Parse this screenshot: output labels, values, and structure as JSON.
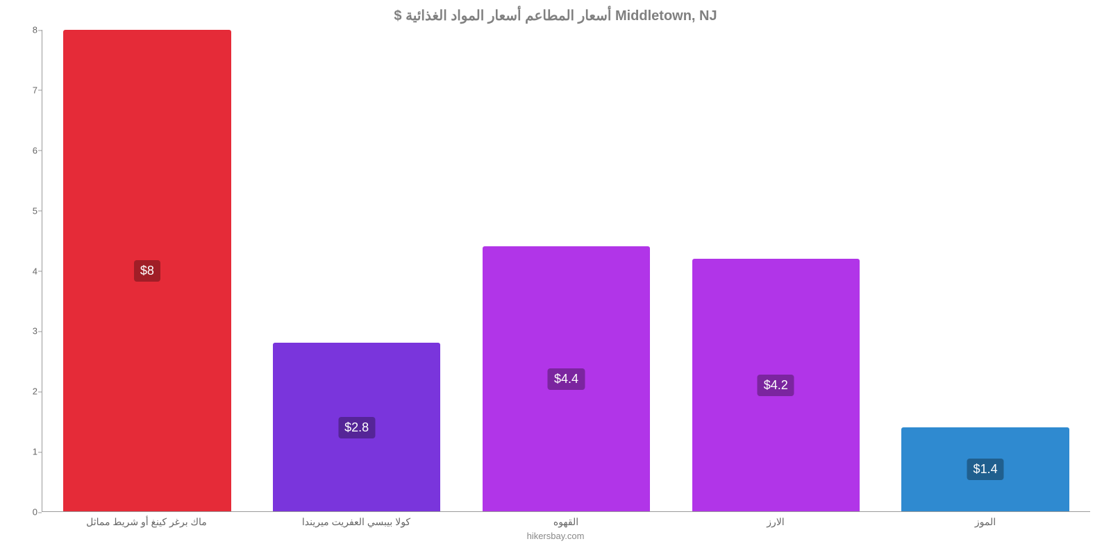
{
  "chart": {
    "type": "bar",
    "title": "$ أسعار المطاعم أسعار المواد الغذائية Middletown, NJ",
    "title_fontsize": 20,
    "title_color": "#808080",
    "source": "hikersbay.com",
    "background_color": "#ffffff",
    "axis_color": "#999999",
    "label_color": "#666666",
    "ylim": [
      0,
      8
    ],
    "ytick_step": 1,
    "yticks": [
      0,
      1,
      2,
      3,
      4,
      5,
      6,
      7,
      8
    ],
    "bar_width_pct": 80,
    "bar_label_fontsize": 18,
    "bar_label_text_color": "#ffffff",
    "categories": [
      "ماك برغر كينغ أو شريط مماثل",
      "كولا بيبسي العفريت ميريندا",
      "القهوه",
      "الارز",
      "الموز"
    ],
    "values": [
      8,
      2.8,
      4.4,
      4.2,
      1.4
    ],
    "value_labels": [
      "$8",
      "$2.8",
      "$4.4",
      "$4.2",
      "$1.4"
    ],
    "bar_colors": [
      "#e52b38",
      "#7a35dc",
      "#b135e8",
      "#b135e8",
      "#2f8ad0"
    ],
    "label_box_colors": [
      "#a01e27",
      "#552597",
      "#7b259f",
      "#7b259f",
      "#205f8e"
    ]
  }
}
